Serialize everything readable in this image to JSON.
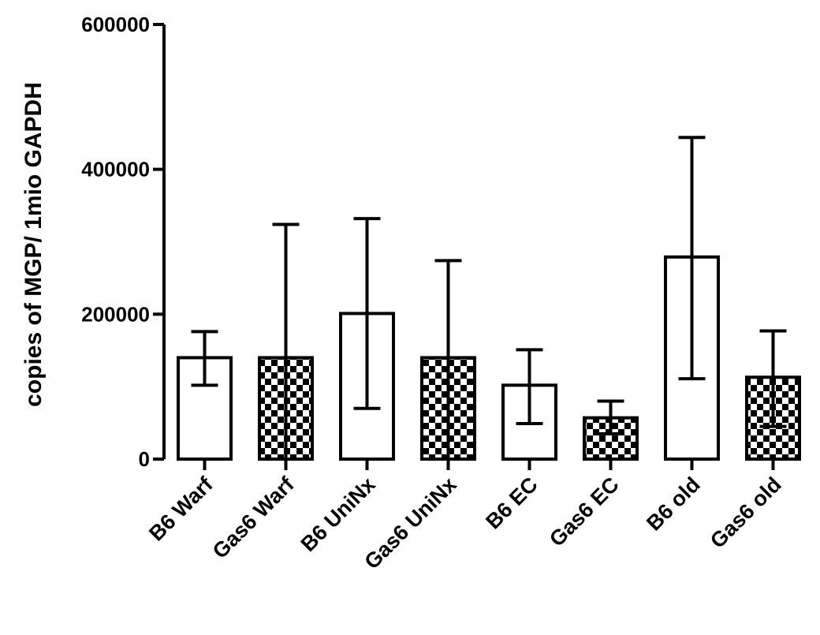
{
  "chart_data": {
    "type": "bar",
    "ylabel": "copies of MGP/ 1mio GAPDH",
    "xlabel": "",
    "title": "",
    "ylim": [
      0,
      600000
    ],
    "yticks": [
      0,
      200000,
      400000,
      600000
    ],
    "ytick_labels": [
      "0",
      "200000",
      "400000",
      "600000"
    ],
    "categories": [
      "B6 Warf",
      "Gas6 Warf",
      "B6 UniNx",
      "Gas6 UniNx",
      "B6 EC",
      "Gas6 EC",
      "B6 old",
      "Gas6 old"
    ],
    "values": [
      140000,
      140000,
      201000,
      140000,
      102000,
      57000,
      279000,
      113000
    ],
    "error_upper": [
      176000,
      324000,
      332000,
      274000,
      151000,
      80000,
      444000,
      177000
    ],
    "error_lower": [
      102000,
      0,
      70000,
      0,
      49000,
      35000,
      111000,
      45000
    ],
    "fill_patterns": [
      "open",
      "checkered",
      "open",
      "checkered",
      "open",
      "checkered",
      "open",
      "checkered"
    ],
    "colors": {
      "stroke": "#000000",
      "background": "#ffffff"
    }
  }
}
